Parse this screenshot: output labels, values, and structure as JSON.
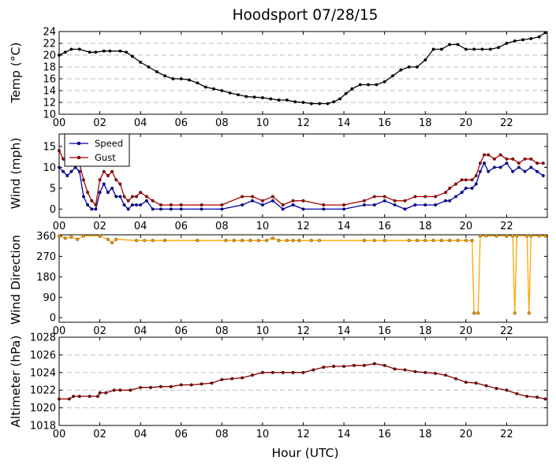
{
  "title": "Hoodsport 07/28/15",
  "xlabel": "Hour (UTC)",
  "chart_data": [
    {
      "type": "line",
      "ylabel": "Temp (°C)",
      "ylim": [
        10,
        24
      ],
      "yticks": [
        10,
        12,
        14,
        16,
        18,
        20,
        22,
        24
      ],
      "grid": true,
      "x_ticks": [
        "00",
        "02",
        "04",
        "06",
        "08",
        "10",
        "12",
        "14",
        "16",
        "18",
        "20",
        "22"
      ],
      "xlim": [
        0,
        24
      ],
      "series": [
        {
          "color": "#000000",
          "x": [
            0,
            0.3,
            0.6,
            1.0,
            1.5,
            1.8,
            2.2,
            2.5,
            3.0,
            3.3,
            3.6,
            4.0,
            4.4,
            4.8,
            5.2,
            5.6,
            6.0,
            6.4,
            6.8,
            7.2,
            7.6,
            8.0,
            8.4,
            8.8,
            9.2,
            9.6,
            10.0,
            10.4,
            10.8,
            11.2,
            11.6,
            12.0,
            12.4,
            12.8,
            13.2,
            13.5,
            13.8,
            14.1,
            14.4,
            14.8,
            15.2,
            15.6,
            16.0,
            16.4,
            16.8,
            17.2,
            17.6,
            18.0,
            18.4,
            18.8,
            19.2,
            19.6,
            20.0,
            20.4,
            20.8,
            21.2,
            21.6,
            22.0,
            22.4,
            22.8,
            23.2,
            23.6,
            23.9
          ],
          "y": [
            20,
            20.5,
            21,
            21,
            20.5,
            20.5,
            20.7,
            20.7,
            20.7,
            20.5,
            19.8,
            18.8,
            18,
            17.2,
            16.5,
            16,
            16,
            15.8,
            15.3,
            14.6,
            14.3,
            14,
            13.6,
            13.3,
            13,
            12.9,
            12.8,
            12.6,
            12.4,
            12.4,
            12.1,
            12.0,
            11.8,
            11.8,
            11.8,
            12.1,
            12.6,
            13.5,
            14.3,
            15.0,
            15.0,
            15.0,
            15.5,
            16.5,
            17.5,
            18,
            18,
            19.2,
            21,
            21,
            21.8,
            21.8,
            21,
            21,
            21,
            21,
            21.3,
            22,
            22.4,
            22.6,
            22.8,
            23.1,
            23.8
          ]
        }
      ]
    },
    {
      "type": "line",
      "ylabel": "Wind (mph)",
      "ylim": [
        -2,
        18
      ],
      "yticks": [
        0,
        5,
        10,
        15
      ],
      "grid": false,
      "x_ticks": [
        "00",
        "02",
        "04",
        "06",
        "08",
        "10",
        "12",
        "14",
        "16",
        "18",
        "20",
        "22"
      ],
      "legend": "top-left",
      "series": [
        {
          "name": "Speed",
          "color": "#0000aa",
          "x": [
            0,
            0.2,
            0.4,
            0.6,
            0.8,
            1.0,
            1.2,
            1.4,
            1.6,
            1.8,
            2.0,
            2.2,
            2.4,
            2.6,
            2.8,
            3.0,
            3.2,
            3.4,
            3.6,
            3.8,
            4.0,
            4.3,
            4.6,
            5.0,
            5.5,
            6.0,
            7.0,
            8.0,
            9.0,
            9.5,
            10.0,
            10.5,
            11.0,
            11.5,
            12.0,
            13.0,
            14.0,
            15.0,
            15.5,
            16.0,
            16.5,
            17.0,
            17.5,
            18.0,
            18.5,
            19.0,
            19.2,
            19.5,
            19.8,
            20.0,
            20.3,
            20.5,
            20.7,
            20.9,
            21.1,
            21.4,
            21.7,
            22.0,
            22.3,
            22.6,
            22.9,
            23.2,
            23.5,
            23.8
          ],
          "y": [
            10,
            9,
            8,
            9,
            10,
            9,
            3,
            1,
            0,
            0,
            4,
            6,
            4,
            5,
            3,
            3,
            1,
            0,
            1,
            1,
            1,
            2,
            0,
            0,
            0,
            0,
            0,
            0,
            1,
            2,
            1,
            2,
            0,
            1,
            0,
            0,
            0,
            1,
            1,
            2,
            1,
            0,
            1,
            1,
            1,
            2,
            2,
            3,
            4,
            5,
            5,
            6,
            9,
            11,
            9,
            10,
            10,
            11,
            9,
            10,
            9,
            10,
            9,
            8
          ]
        },
        {
          "name": "Gust",
          "color": "#aa0000",
          "x": [
            0,
            0.2,
            0.4,
            0.6,
            0.8,
            1.0,
            1.2,
            1.4,
            1.6,
            1.8,
            2.0,
            2.2,
            2.4,
            2.6,
            2.8,
            3.0,
            3.2,
            3.4,
            3.6,
            3.8,
            4.0,
            4.3,
            4.6,
            5.0,
            5.5,
            6.0,
            7.0,
            8.0,
            9.0,
            9.5,
            10.0,
            10.5,
            11.0,
            11.5,
            12.0,
            13.0,
            14.0,
            15.0,
            15.5,
            16.0,
            16.5,
            17.0,
            17.5,
            18.0,
            18.5,
            19.0,
            19.2,
            19.5,
            19.8,
            20.0,
            20.3,
            20.5,
            20.7,
            20.9,
            21.1,
            21.4,
            21.7,
            22.0,
            22.3,
            22.6,
            22.9,
            23.2,
            23.5,
            23.8
          ],
          "y": [
            14,
            12,
            11,
            12,
            13,
            11,
            7,
            4,
            2,
            1,
            7,
            9,
            8,
            9,
            7,
            6,
            3,
            2,
            3,
            3,
            4,
            3,
            2,
            1,
            1,
            1,
            1,
            1,
            3,
            3,
            2,
            3,
            1,
            2,
            2,
            1,
            1,
            2,
            3,
            3,
            2,
            2,
            3,
            3,
            3,
            4,
            5,
            6,
            7,
            7,
            7,
            8,
            11,
            13,
            13,
            12,
            13,
            12,
            12,
            11,
            12,
            12,
            11,
            11
          ]
        }
      ]
    },
    {
      "type": "line",
      "ylabel": "Wind Direction",
      "ylim": [
        -20,
        365
      ],
      "yticks": [
        0,
        90,
        180,
        270,
        360
      ],
      "grid": false,
      "x_ticks": [
        "00",
        "02",
        "04",
        "06",
        "08",
        "10",
        "12",
        "14",
        "16",
        "18",
        "20",
        "22"
      ],
      "series": [
        {
          "color": "#ffa500",
          "x": [
            0,
            0.3,
            0.6,
            0.9,
            1.2,
            2.0,
            2.4,
            2.6,
            2.8,
            3.8,
            4.2,
            4.6,
            5.2,
            6.8,
            8.2,
            8.6,
            9.0,
            9.4,
            9.8,
            10.2,
            10.5,
            10.8,
            11.2,
            11.5,
            11.8,
            12.4,
            12.8,
            15.0,
            15.5,
            16.0,
            17.2,
            17.6,
            18.0,
            18.4,
            18.8,
            19.2,
            19.6,
            20.0,
            20.3,
            20.4,
            20.6,
            20.7,
            21.0,
            21.5,
            22.0,
            22.3,
            22.4,
            22.5,
            23.0,
            23.1,
            23.2,
            23.6,
            23.9
          ],
          "y": [
            360,
            350,
            355,
            345,
            360,
            360,
            345,
            330,
            345,
            340,
            340,
            340,
            340,
            340,
            340,
            340,
            340,
            340,
            340,
            340,
            350,
            340,
            340,
            340,
            340,
            340,
            340,
            340,
            340,
            340,
            340,
            340,
            340,
            340,
            340,
            340,
            340,
            340,
            340,
            20,
            20,
            360,
            360,
            360,
            360,
            360,
            20,
            360,
            360,
            20,
            360,
            360,
            360
          ]
        }
      ]
    },
    {
      "type": "line",
      "ylabel": "Altimeter (hPa)",
      "ylim": [
        1018,
        1028
      ],
      "yticks": [
        1018,
        1020,
        1022,
        1024,
        1026,
        1028
      ],
      "grid": true,
      "x_ticks": [
        "00",
        "02",
        "04",
        "06",
        "08",
        "10",
        "12",
        "14",
        "16",
        "18",
        "20",
        "22"
      ],
      "series": [
        {
          "color": "#8b0000",
          "x": [
            0,
            0.5,
            0.7,
            1.0,
            1.5,
            1.9,
            2.0,
            2.3,
            2.7,
            3.0,
            3.5,
            4.0,
            4.5,
            5.0,
            5.5,
            6.0,
            6.5,
            7.0,
            7.5,
            8.0,
            8.5,
            9.0,
            9.5,
            10.0,
            10.5,
            11.0,
            11.5,
            12.0,
            12.5,
            13.0,
            13.5,
            14.0,
            14.5,
            15.0,
            15.5,
            16.0,
            16.5,
            17.0,
            17.5,
            18.0,
            18.5,
            19.0,
            19.5,
            20.0,
            20.5,
            21.0,
            21.5,
            22.0,
            22.5,
            23.0,
            23.5,
            23.9
          ],
          "y": [
            1021,
            1021,
            1021.3,
            1021.3,
            1021.3,
            1021.3,
            1021.7,
            1021.7,
            1022,
            1022,
            1022,
            1022.3,
            1022.3,
            1022.4,
            1022.4,
            1022.6,
            1022.6,
            1022.7,
            1022.8,
            1023.2,
            1023.3,
            1023.4,
            1023.7,
            1024,
            1024,
            1024,
            1024,
            1024,
            1024.3,
            1024.6,
            1024.7,
            1024.7,
            1024.8,
            1024.8,
            1025,
            1024.8,
            1024.4,
            1024.3,
            1024.1,
            1024,
            1023.9,
            1023.7,
            1023.3,
            1022.9,
            1022.8,
            1022.5,
            1022.2,
            1022,
            1021.6,
            1021.3,
            1021.2,
            1021
          ]
        }
      ]
    }
  ]
}
